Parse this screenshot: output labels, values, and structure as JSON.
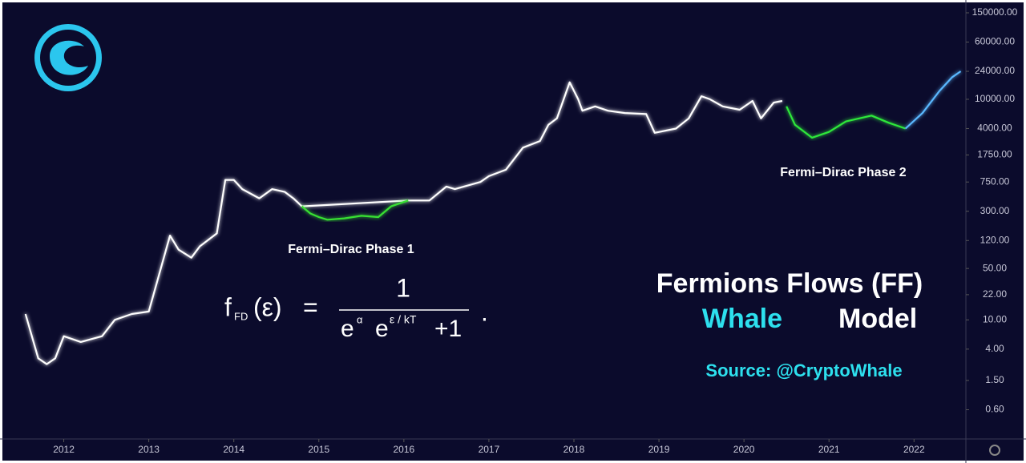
{
  "chart_data": {
    "type": "line",
    "log_scale": true,
    "grid": false,
    "xlim": [
      2011.25,
      2022.61
    ],
    "xticks": [
      2012,
      2013,
      2014,
      2015,
      2016,
      2017,
      2018,
      2019,
      2020,
      2021,
      2022
    ],
    "ylim": [
      0.24,
      224000
    ],
    "yticks": [
      {
        "value": 150000,
        "label": "150000.00"
      },
      {
        "value": 60000,
        "label": "60000.00"
      },
      {
        "value": 24000,
        "label": "24000.00"
      },
      {
        "value": 10000,
        "label": "10000.00"
      },
      {
        "value": 4000,
        "label": "4000.00"
      },
      {
        "value": 1750,
        "label": "1750.00"
      },
      {
        "value": 750,
        "label": "750.00"
      },
      {
        "value": 300,
        "label": "300.00"
      },
      {
        "value": 120,
        "label": "120.00"
      },
      {
        "value": 50,
        "label": "50.00"
      },
      {
        "value": 22,
        "label": "22.00"
      },
      {
        "value": 10,
        "label": "10.00"
      },
      {
        "value": 4,
        "label": "4.00"
      },
      {
        "value": 1.5,
        "label": "1.50"
      },
      {
        "value": 0.6,
        "label": "0.60"
      }
    ],
    "series": [
      {
        "color": "#ffffff",
        "x": [
          2011.55,
          2011.7,
          2011.8,
          2011.9,
          2012.0,
          2012.2,
          2012.45,
          2012.6,
          2012.8,
          2013.0,
          2013.25,
          2013.35,
          2013.5,
          2013.6,
          2013.8,
          2013.9,
          2014.0,
          2014.1,
          2014.3,
          2014.45,
          2014.6,
          2014.7,
          2014.8,
          2016.05,
          2016.3,
          2016.5,
          2016.6,
          2016.9,
          2017.0,
          2017.2,
          2017.4,
          2017.6,
          2017.7,
          2017.8,
          2017.95,
          2018.05,
          2018.1,
          2018.25,
          2018.4,
          2018.6,
          2018.85,
          2018.95,
          2019.2,
          2019.35,
          2019.5,
          2019.6,
          2019.75,
          2019.95,
          2020.1,
          2020.2,
          2020.35,
          2020.45
        ],
        "values": [
          12,
          3,
          2.5,
          3,
          6,
          5,
          6,
          10,
          12,
          13,
          140,
          90,
          70,
          100,
          150,
          800,
          800,
          600,
          450,
          600,
          550,
          450,
          350,
          420,
          420,
          650,
          600,
          750,
          900,
          1100,
          2200,
          2700,
          4500,
          5500,
          17000,
          10000,
          7000,
          8000,
          7000,
          6500,
          6300,
          3500,
          4000,
          5500,
          11000,
          10000,
          8000,
          7200,
          9500,
          5500,
          9000,
          9500
        ]
      },
      {
        "color": "#39e033",
        "x": [
          2014.8,
          2014.9,
          2015.0,
          2015.1,
          2015.3,
          2015.5,
          2015.7,
          2015.85,
          2016.05
        ],
        "values": [
          350,
          280,
          250,
          230,
          240,
          260,
          250,
          350,
          420
        ]
      },
      {
        "color": "#2ee83a",
        "x": [
          2020.5,
          2020.6,
          2020.8,
          2021.0,
          2021.2,
          2021.5,
          2021.7,
          2021.9
        ],
        "values": [
          8000,
          4500,
          3000,
          3600,
          5000,
          6000,
          4800,
          4000
        ]
      },
      {
        "color": "#5ab8ff",
        "x": [
          2021.9,
          2022.1,
          2022.3,
          2022.45,
          2022.55
        ],
        "values": [
          4000,
          6500,
          13000,
          20000,
          24000
        ]
      }
    ],
    "annotations": [
      "Fermi–Dirac Phase 1",
      "Fermi–Dirac Phase 2"
    ],
    "title": "Fermions Flows (FF)",
    "title_highlight": "Whale",
    "title_rest": "Model",
    "source": "Source: @CryptoWhale"
  },
  "formula": {
    "f": "f",
    "sub": "FD",
    "arg": "(ε)",
    "equals": "=",
    "numerator": "1",
    "e1": "e",
    "exp1": "α",
    "e2": "e",
    "exp2": "ε / kT",
    "tail": "+1",
    "end": "."
  }
}
